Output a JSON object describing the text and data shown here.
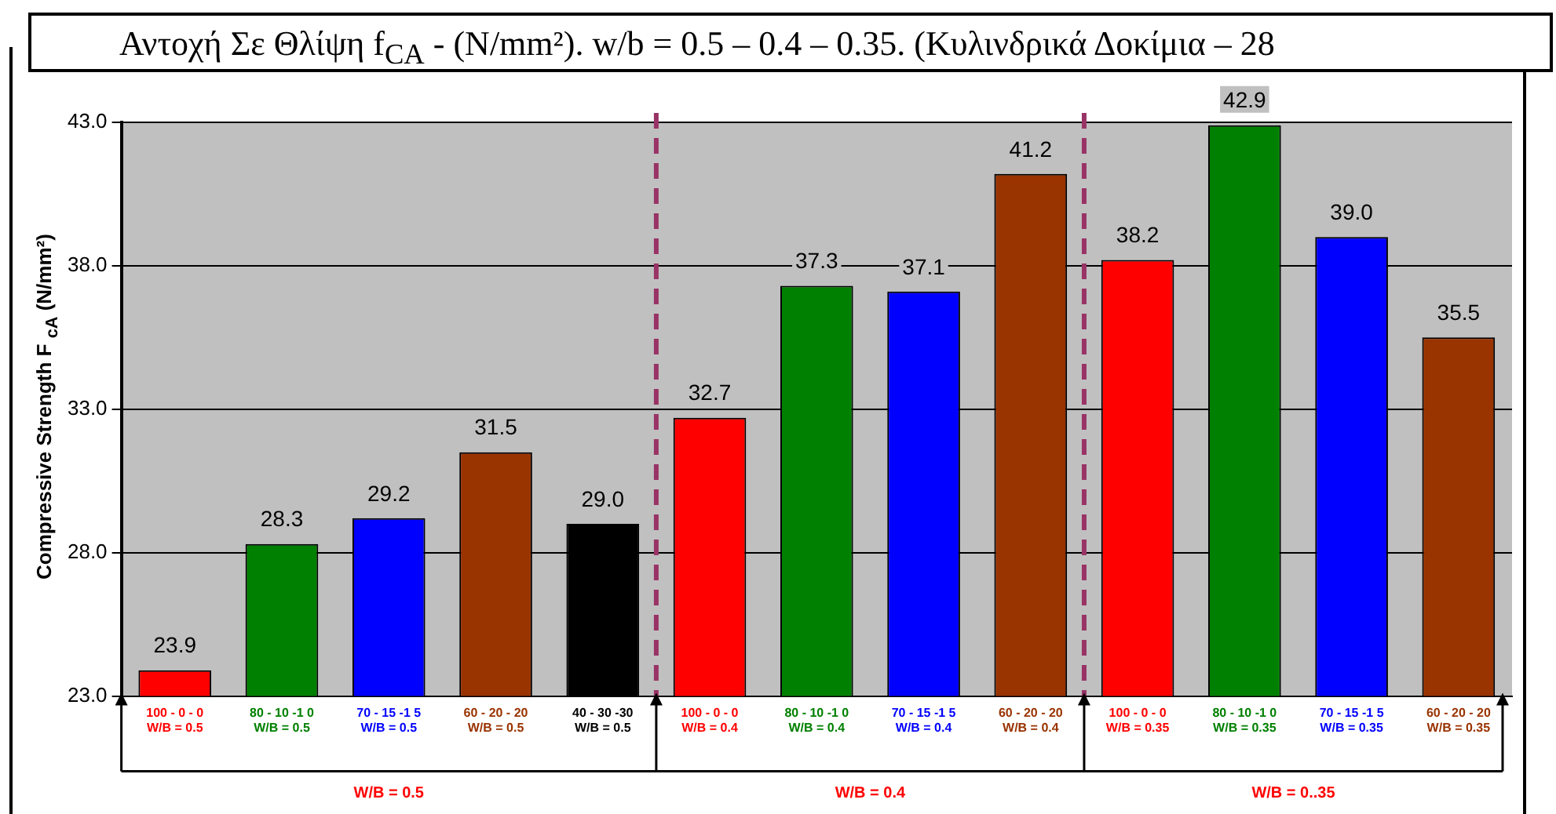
{
  "chart_data": {
    "type": "bar",
    "title": "Αντοχή Σε Θλίψη f$_{CA}$ - (N/mm²). w/b = 0.5 – 0.4 – 0.35. (Κυλινδρικά  Δοκίμια – 28",
    "ylabel": "Compressive Strength F $_{cA}$ (N/mm²)",
    "categories": [
      "100 - 0 - 0\nW/B = 0.5",
      "80 - 10 -1 0\nW/B = 0.5",
      "70 - 15 -1 5\nW/B = 0.5",
      "60 - 20 - 20\nW/B = 0.5",
      "40 - 30 -30\nW/B = 0.5",
      "100 - 0 - 0\nW/B = 0.4",
      "80 - 10 -1 0\nW/B = 0.4",
      "70 - 15 -1 5\nW/B = 0.4",
      "60 - 20 - 20\nW/B = 0.4",
      "100 - 0 - 0\nW/B = 0.35",
      "80 - 10 -1 0\nW/B = 0.35",
      "70 - 15 -1 5\nW/B = 0.35",
      "60 - 20 - 20\nW/B = 0.35"
    ],
    "values": [
      23.9,
      28.3,
      29.2,
      31.5,
      29.0,
      32.7,
      37.3,
      37.1,
      41.2,
      38.2,
      42.9,
      39.0,
      35.5
    ],
    "value_labels": [
      "23.9",
      "28.3",
      "29.2",
      "31.5",
      "29.0",
      "32.7",
      "37.3",
      "37.1",
      "41.2",
      "38.2",
      "42.9",
      "39.0",
      "35.5"
    ],
    "colors": [
      "#ff0000",
      "#008000",
      "#0000ff",
      "#993300",
      "#000000",
      "#ff0000",
      "#008000",
      "#0000ff",
      "#993300",
      "#ff0000",
      "#008000",
      "#0000ff",
      "#993300"
    ],
    "ylim": [
      23,
      43
    ],
    "yticks": [
      {
        "value": 23,
        "label": "23.0"
      },
      {
        "value": 28,
        "label": "28.0"
      },
      {
        "value": 33,
        "label": "33.0"
      },
      {
        "value": 38,
        "label": "38.0"
      },
      {
        "value": 43,
        "label": "43.0"
      }
    ],
    "grid": "y",
    "legend": false,
    "annotations": [
      "W/B = 0.5",
      "W/B = 0.4",
      "W/B = 0..35"
    ]
  }
}
